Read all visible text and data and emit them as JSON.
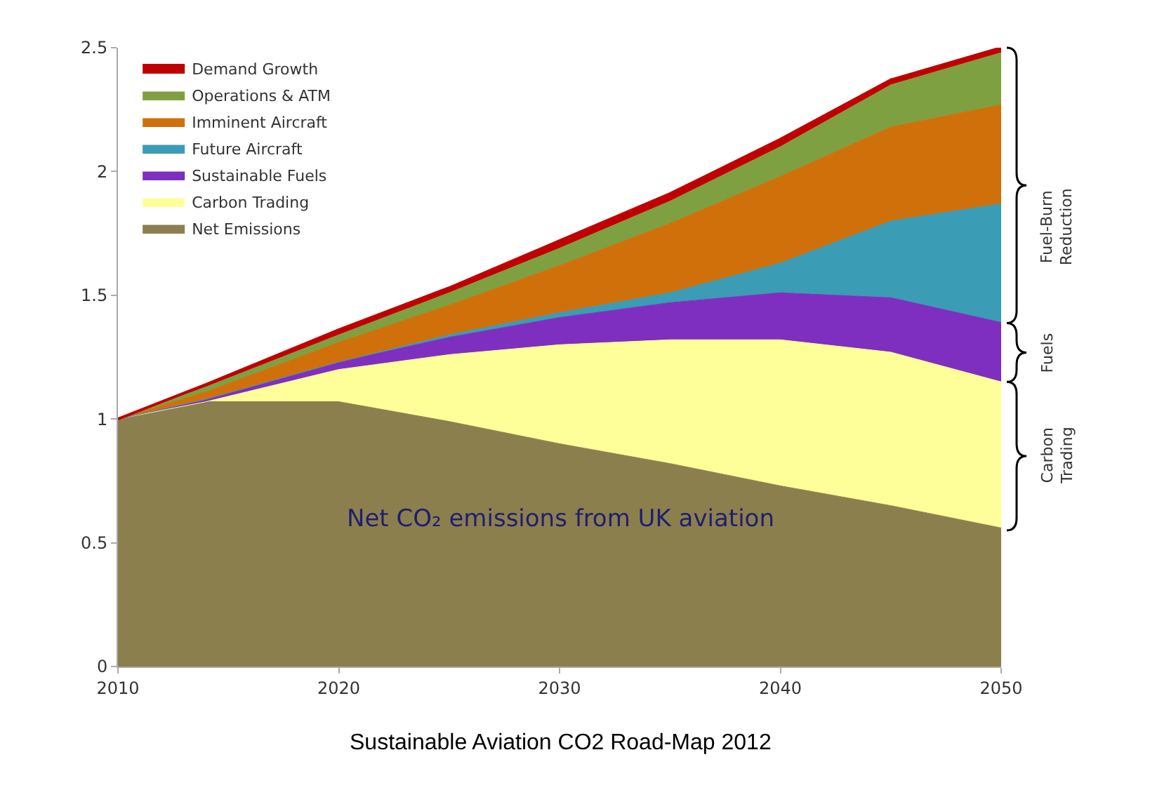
{
  "chart_data": {
    "type": "area",
    "stacked": true,
    "x": [
      2010,
      2014,
      2020,
      2025,
      2030,
      2035,
      2040,
      2045,
      2050
    ],
    "series": [
      {
        "name": "Net Emissions",
        "color": "#8c7f4e",
        "values": [
          1.0,
          1.07,
          1.07,
          0.99,
          0.9,
          0.82,
          0.73,
          0.65,
          0.56
        ]
      },
      {
        "name": "Carbon Trading",
        "color": "#ffff99",
        "values": [
          0,
          0,
          0.13,
          0.27,
          0.4,
          0.5,
          0.59,
          0.62,
          0.59
        ]
      },
      {
        "name": "Sustainable Fuels",
        "color": "#7f2fbf",
        "values": [
          0,
          0.01,
          0.03,
          0.07,
          0.11,
          0.15,
          0.19,
          0.22,
          0.24
        ]
      },
      {
        "name": "Future Aircraft",
        "color": "#3a9cb5",
        "values": [
          0,
          0,
          0,
          0.01,
          0.02,
          0.04,
          0.12,
          0.31,
          0.48
        ]
      },
      {
        "name": "Imminent Aircraft",
        "color": "#d0700a",
        "values": [
          0,
          0.03,
          0.08,
          0.12,
          0.19,
          0.28,
          0.35,
          0.38,
          0.4
        ]
      },
      {
        "name": "Operations & ATM",
        "color": "#7fa040",
        "values": [
          0,
          0.02,
          0.03,
          0.05,
          0.07,
          0.09,
          0.12,
          0.17,
          0.21
        ]
      },
      {
        "name": "Demand Growth",
        "color": "#c00000",
        "values": [
          0,
          0.01,
          0.02,
          0.02,
          0.03,
          0.03,
          0.03,
          0.02,
          0.02
        ]
      }
    ],
    "xlim": [
      2010,
      2050
    ],
    "xticks": [
      2010,
      2020,
      2030,
      2040,
      2050
    ],
    "ylim": [
      0,
      2.5
    ],
    "yticks": [
      0,
      0.5,
      1,
      1.5,
      2,
      2.5
    ],
    "legend": "top left",
    "annotations": [
      "Net CO₂ emissions from UK aviation",
      "Fuel-Burn Reduction",
      "Fuels",
      "Carbon Trading",
      "Sustainable Aviation CO2 Road-Map 2012"
    ]
  }
}
